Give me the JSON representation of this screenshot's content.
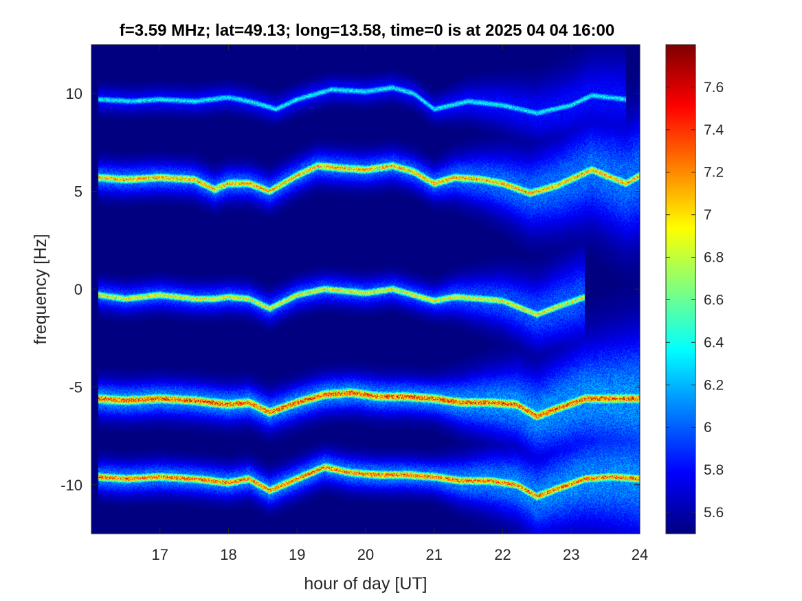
{
  "chart_data": {
    "type": "heatmap",
    "title": "f=3.59 MHz;  lat=49.13; long=13.58, time=0 is at 2025 04 04 16:00",
    "xlabel": "hour of day [UT]",
    "ylabel": "frequency [Hz]",
    "xlim": [
      16,
      24
    ],
    "ylim": [
      -12.5,
      12.5
    ],
    "xticks": [
      "17",
      "18",
      "19",
      "20",
      "21",
      "22",
      "23",
      "24"
    ],
    "xtick_values": [
      17,
      18,
      19,
      20,
      21,
      22,
      23,
      24
    ],
    "yticks": [
      "10",
      "5",
      "0",
      "-5",
      "-10"
    ],
    "ytick_values": [
      10,
      5,
      0,
      -5,
      -10
    ],
    "colorbar": {
      "range": [
        5.5,
        7.8
      ],
      "ticks": [
        "5.6",
        "5.8",
        "6",
        "6.2",
        "6.4",
        "6.6",
        "6.8",
        "7",
        "7.2",
        "7.4",
        "7.6"
      ],
      "tick_values": [
        5.6,
        5.8,
        6.0,
        6.2,
        6.4,
        6.6,
        6.8,
        7.0,
        7.2,
        7.4,
        7.6
      ],
      "colormap": "jet"
    },
    "background_value": 5.5,
    "background_color": "#00008f",
    "traces": [
      {
        "name": "trace-10",
        "time": [
          16.1,
          16.6,
          17.0,
          17.5,
          18.0,
          18.3,
          18.7,
          19.0,
          19.5,
          20.0,
          20.4,
          20.7,
          21.0,
          21.5,
          22.0,
          22.5,
          23.0,
          23.3,
          23.8
        ],
        "freq": [
          9.7,
          9.6,
          9.7,
          9.6,
          9.8,
          9.6,
          9.2,
          9.7,
          10.2,
          10.1,
          10.3,
          10.0,
          9.2,
          9.6,
          9.4,
          9.0,
          9.4,
          9.9,
          9.7
        ],
        "width": 0.12,
        "peak": 6.6,
        "end": 23.8
      },
      {
        "name": "trace-5",
        "time": [
          16.1,
          16.5,
          17.0,
          17.5,
          17.8,
          18.0,
          18.3,
          18.6,
          19.0,
          19.3,
          19.6,
          20.0,
          20.4,
          20.7,
          21.0,
          21.3,
          21.7,
          22.0,
          22.4,
          22.8,
          23.3,
          23.8,
          24.0
        ],
        "freq": [
          5.7,
          5.6,
          5.7,
          5.6,
          5.1,
          5.4,
          5.4,
          5.0,
          5.8,
          6.3,
          6.2,
          6.1,
          6.3,
          6.0,
          5.4,
          5.7,
          5.6,
          5.4,
          4.9,
          5.3,
          6.1,
          5.4,
          5.8
        ],
        "width": 0.16,
        "peak": 7.5,
        "end": 24.0
      },
      {
        "name": "trace-0",
        "time": [
          16.1,
          16.5,
          17.0,
          17.5,
          17.8,
          18.0,
          18.3,
          18.6,
          19.0,
          19.4,
          19.7,
          20.0,
          20.4,
          20.7,
          21.0,
          21.3,
          21.7,
          22.0,
          22.5,
          22.8,
          23.2
        ],
        "freq": [
          -0.3,
          -0.5,
          -0.3,
          -0.5,
          -0.5,
          -0.4,
          -0.5,
          -1.0,
          -0.3,
          0.0,
          -0.1,
          -0.2,
          0.0,
          -0.3,
          -0.6,
          -0.4,
          -0.5,
          -0.6,
          -1.3,
          -0.9,
          -0.4
        ],
        "width": 0.14,
        "peak": 7.3,
        "end": 23.2
      },
      {
        "name": "trace-minus5",
        "time": [
          16.1,
          16.5,
          17.0,
          17.5,
          18.0,
          18.3,
          18.6,
          19.0,
          19.4,
          19.8,
          20.2,
          20.6,
          21.0,
          21.4,
          21.8,
          22.2,
          22.5,
          22.8,
          23.2,
          23.6,
          24.0
        ],
        "freq": [
          -5.6,
          -5.7,
          -5.6,
          -5.7,
          -5.9,
          -5.8,
          -6.3,
          -5.8,
          -5.4,
          -5.3,
          -5.5,
          -5.5,
          -5.6,
          -5.8,
          -5.8,
          -5.9,
          -6.5,
          -6.1,
          -5.6,
          -5.6,
          -5.6
        ],
        "width": 0.18,
        "peak": 7.8,
        "end": 24.0
      },
      {
        "name": "trace-minus10",
        "time": [
          16.1,
          16.5,
          17.0,
          17.5,
          18.0,
          18.3,
          18.6,
          19.0,
          19.4,
          19.8,
          20.2,
          20.6,
          21.0,
          21.4,
          21.8,
          22.2,
          22.5,
          22.8,
          23.2,
          23.6,
          24.0
        ],
        "freq": [
          -9.6,
          -9.7,
          -9.6,
          -9.7,
          -9.9,
          -9.7,
          -10.3,
          -9.7,
          -9.1,
          -9.4,
          -9.5,
          -9.5,
          -9.6,
          -9.8,
          -9.8,
          -10.0,
          -10.6,
          -10.2,
          -9.7,
          -9.6,
          -9.7
        ],
        "width": 0.16,
        "peak": 7.7,
        "end": 24.0
      }
    ]
  }
}
